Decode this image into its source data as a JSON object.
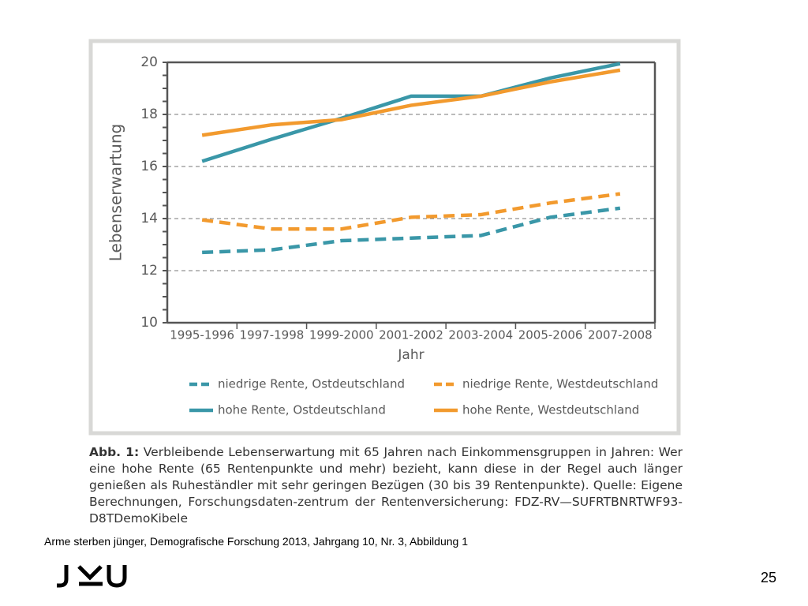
{
  "chart_data": {
    "type": "line",
    "ylabel": "Lebenserwartung",
    "xlabel": "Jahr",
    "categories": [
      "1995-1996",
      "1997-1998",
      "1999-2000",
      "2001-2002",
      "2003-2004",
      "2005-2006",
      "2007-2008"
    ],
    "series": [
      {
        "name": "niedrige Rente, Ostdeutschland",
        "color": "#3a97a8",
        "style": "dashed",
        "values": [
          12.7,
          12.8,
          13.15,
          13.25,
          13.35,
          14.05,
          14.4
        ]
      },
      {
        "name": "niedrige Rente, Westdeutschland",
        "color": "#f29a2e",
        "style": "dashed",
        "values": [
          13.95,
          13.6,
          13.6,
          14.05,
          14.15,
          14.6,
          14.95
        ]
      },
      {
        "name": "hohe Rente, Ostdeutschland",
        "color": "#3a97a8",
        "style": "solid",
        "values": [
          16.2,
          17.05,
          17.85,
          18.7,
          18.7,
          19.4,
          19.95
        ]
      },
      {
        "name": "hohe Rente, Westdeutschland",
        "color": "#f29a2e",
        "style": "solid",
        "values": [
          17.2,
          17.6,
          17.8,
          18.35,
          18.7,
          19.25,
          19.7
        ]
      }
    ],
    "ylim": [
      10,
      20
    ],
    "yticks": [
      10,
      12,
      14,
      16,
      18,
      20
    ],
    "grid": true
  },
  "caption": {
    "label": "Abb. 1:",
    "text": "Verbleibende Lebenserwartung mit 65 Jahren nach Einkommensgruppen in Jahren: Wer eine hohe Rente (65 Rentenpunkte und mehr) bezieht, kann diese in der Regel auch länger genießen als Ruheständler mit sehr geringen Bezügen (30 bis 39 Rentenpunkte). Quelle: Eigene Berechnungen, Forschungsdaten-zentrum der Rentenversicherung: FDZ-RV—SUFRTBNRTWF93-D8TDemoKibele"
  },
  "source": "Arme sterben jünger, Demografische Forschung 2013, Jahrgang 10, Nr. 3, Abbildung 1",
  "page_number": "25"
}
